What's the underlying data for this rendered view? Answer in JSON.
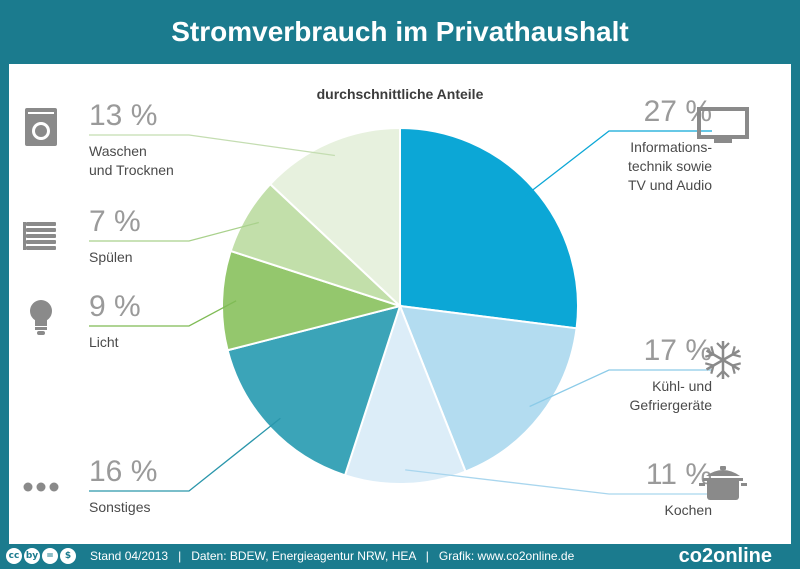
{
  "header": {
    "title": "Stromverbrauch im Privathaushalt"
  },
  "chart_data": {
    "type": "pie",
    "subtitle": "durchschnittliche Anteile",
    "unit": "%",
    "slices": [
      {
        "label": "Informations-\ntechnik sowie\nTV und Audio",
        "value": 27,
        "value_text": "27 %",
        "color": "#0ca7d6",
        "icon": "tv-icon"
      },
      {
        "label": "Kühl- und\nGefriergeräte",
        "value": 17,
        "value_text": "17 %",
        "color": "#b3dcf0",
        "icon": "snowflake-icon"
      },
      {
        "label": "Kochen",
        "value": 11,
        "value_text": "11 %",
        "color": "#dcedf8",
        "icon": "cooking-pot-icon"
      },
      {
        "label": "Sonstiges",
        "value": 16,
        "value_text": "16 %",
        "color": "#3ba4b8",
        "icon": "more-dots-icon"
      },
      {
        "label": "Licht",
        "value": 9,
        "value_text": "9 %",
        "color": "#94c76d",
        "icon": "light-bulb-icon"
      },
      {
        "label": "Spülen",
        "value": 7,
        "value_text": "7 %",
        "color": "#c2dfaa",
        "icon": "dish-stack-icon"
      },
      {
        "label": "Waschen\nund Trocknen",
        "value": 13,
        "value_text": "13 %",
        "color": "#e7f1de",
        "icon": "washing-machine-icon"
      }
    ]
  },
  "footer": {
    "cc_badges": [
      "cc",
      "by",
      "=",
      "$"
    ],
    "text": "Stand 04/2013   |   Daten: BDEW, Energieagentur NRW, HEA   |   Grafik: www.co2online.de",
    "logo": "co2online"
  }
}
